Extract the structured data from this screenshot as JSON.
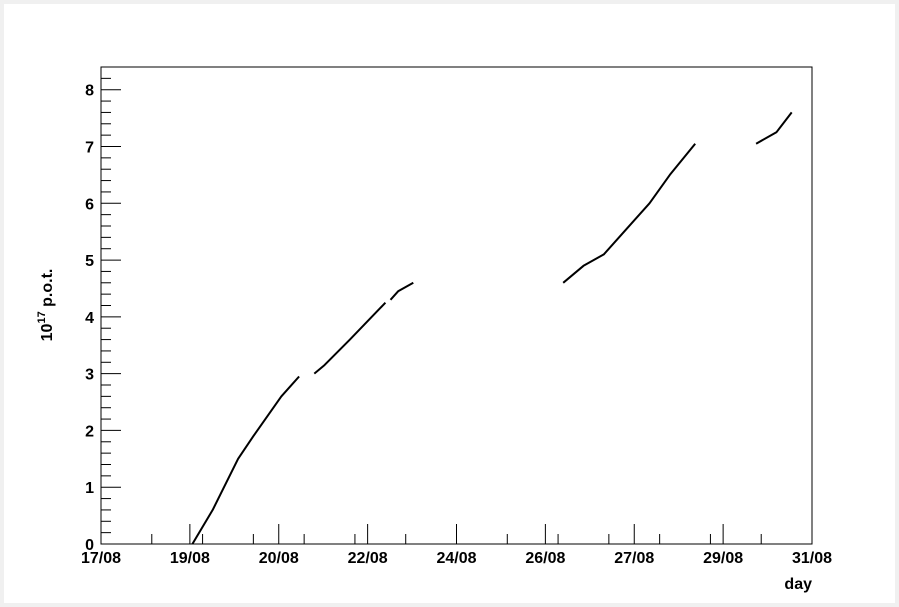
{
  "chart_data": {
    "type": "line",
    "title": "",
    "xlabel": "day",
    "ylabel_base": "10",
    "ylabel_exp": "17",
    "ylabel_rest": " p.o.t.",
    "xlim": [
      "2008-08-17",
      "2008-08-31"
    ],
    "ylim": [
      0,
      8.4
    ],
    "x_ticks": [
      "17/08",
      "19/08",
      "20/08",
      "22/08",
      "24/08",
      "26/08",
      "27/08",
      "29/08",
      "31/08"
    ],
    "y_ticks": [
      "0",
      "1",
      "2",
      "3",
      "4",
      "5",
      "6",
      "7",
      "8"
    ],
    "grid": false,
    "series": [
      {
        "color": "#000000",
        "segments": [
          [
            [
              "2008-08-18 19:12",
              0.0
            ],
            [
              "2008-08-19 04:48",
              0.6
            ],
            [
              "2008-08-19 16:48",
              1.5
            ],
            [
              "2008-08-20 00:00",
              1.9
            ],
            [
              "2008-08-20 13:12",
              2.6
            ],
            [
              "2008-08-20 21:36",
              2.95
            ]
          ],
          [
            [
              "2008-08-21 04:48",
              3.0
            ],
            [
              "2008-08-21 09:36",
              3.15
            ],
            [
              "2008-08-21 21:36",
              3.6
            ],
            [
              "2008-08-22 14:24",
              4.25
            ]
          ],
          [
            [
              "2008-08-22 16:48",
              4.3
            ],
            [
              "2008-08-22 20:24",
              4.45
            ],
            [
              "2008-08-23 03:36",
              4.6
            ]
          ],
          [
            [
              "2008-08-26 02:24",
              4.6
            ],
            [
              "2008-08-26 12:00",
              4.9
            ],
            [
              "2008-08-26 21:36",
              5.1
            ],
            [
              "2008-08-27 07:12",
              5.5
            ],
            [
              "2008-08-27 19:12",
              6.0
            ],
            [
              "2008-08-28 04:48",
              6.5
            ],
            [
              "2008-08-28 16:48",
              7.05
            ]
          ],
          [
            [
              "2008-08-29 21:36",
              7.05
            ],
            [
              "2008-08-30 07:12",
              7.25
            ],
            [
              "2008-08-30 14:24",
              7.6
            ]
          ]
        ]
      }
    ]
  }
}
